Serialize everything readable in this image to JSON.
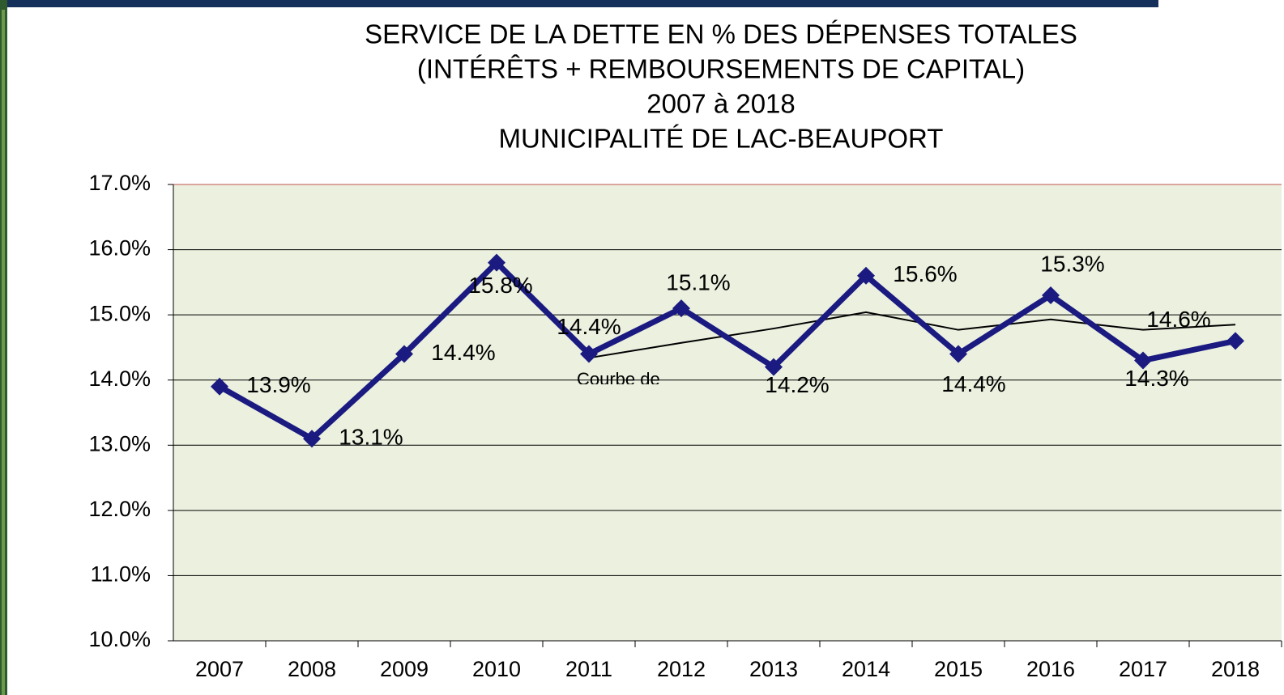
{
  "chart_data": {
    "type": "line",
    "title": [
      "SERVICE DE LA DETTE EN % DES DÉPENSES TOTALES",
      "(INTÉRÊTS + REMBOURSEMENTS DE CAPITAL)",
      "2007 à 2018",
      "MUNICIPALITÉ DE LAC-BEAUPORT"
    ],
    "categories": [
      "2007",
      "2008",
      "2009",
      "2010",
      "2011",
      "2012",
      "2013",
      "2014",
      "2015",
      "2016",
      "2017",
      "2018"
    ],
    "series": [
      {
        "color": "#1a1a80",
        "values": [
          13.9,
          13.1,
          14.4,
          15.8,
          14.4,
          15.1,
          14.2,
          15.6,
          14.4,
          15.3,
          14.3,
          14.6
        ],
        "value_labels": [
          "13.9%",
          "13.1%",
          "14.4%",
          "15.8%",
          "14.4%",
          "15.1%",
          "14.2%",
          "15.6%",
          "14.4%",
          "15.3%",
          "14.3%",
          "14.6%"
        ]
      },
      {
        "color": "#000000",
        "values": [
          null,
          null,
          null,
          null,
          14.34,
          14.57,
          14.79,
          15.04,
          14.77,
          14.93,
          14.77,
          14.85
        ]
      }
    ],
    "annotation": "Courbe de",
    "ylim": [
      10,
      17
    ],
    "yticks": [
      {
        "value": 10,
        "label": "10.0%"
      },
      {
        "value": 11,
        "label": "11.0%"
      },
      {
        "value": 12,
        "label": "12.0%"
      },
      {
        "value": 13,
        "label": "13.0%"
      },
      {
        "value": 14,
        "label": "14.0%"
      },
      {
        "value": 15,
        "label": "15.0%"
      },
      {
        "value": 16,
        "label": "16.0%"
      },
      {
        "value": 17,
        "label": "17.0%"
      }
    ],
    "grid": true,
    "plot_color": "#ebf0df"
  }
}
